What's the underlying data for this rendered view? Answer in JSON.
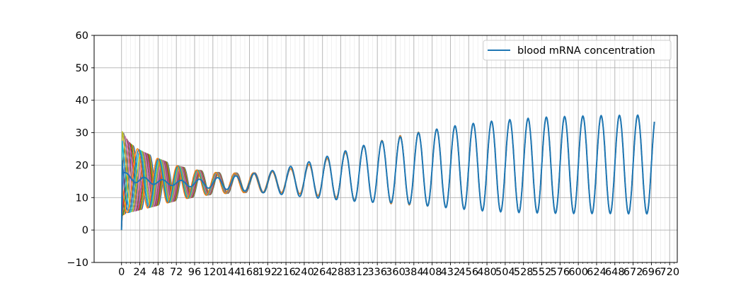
{
  "chart_data": {
    "type": "line",
    "title": "",
    "xlabel": "",
    "ylabel": "",
    "xlim": [
      -36,
      730
    ],
    "ylim": [
      -10,
      60
    ],
    "x_major_ticks": [
      0,
      24,
      48,
      72,
      96,
      120,
      144,
      168,
      192,
      216,
      240,
      264,
      288,
      312,
      336,
      360,
      384,
      408,
      432,
      456,
      480,
      504,
      528,
      552,
      576,
      600,
      624,
      648,
      672,
      696,
      720
    ],
    "x_tick_labels": [
      "0",
      "24",
      "48",
      "72",
      "96",
      "120",
      "144",
      "168",
      "192",
      "216",
      "240",
      "264",
      "288",
      "312",
      "336",
      "360",
      "384",
      "408",
      "432",
      "456",
      "480",
      "504",
      "528",
      "552",
      "576",
      "600",
      "624",
      "648",
      "672",
      "696",
      "720"
    ],
    "x_minor_tick_step": 6,
    "y_ticks": [
      -10,
      0,
      10,
      20,
      30,
      40,
      50,
      60
    ],
    "y_tick_labels": [
      "−10",
      "0",
      "10",
      "20",
      "30",
      "40",
      "50",
      "60"
    ],
    "grid": true,
    "legend_position": "top-right",
    "period_hours": 24,
    "highlight_series": {
      "name": "blood mRNA concentration",
      "color": "#1f77b4",
      "x": [
        0,
        1,
        2,
        3,
        6,
        10,
        20,
        30,
        40,
        50,
        60,
        80,
        100,
        120,
        150,
        180,
        200,
        240,
        280,
        320,
        360,
        400,
        440,
        480,
        520,
        560,
        600,
        640,
        680,
        700
      ],
      "center": [
        0,
        17.5,
        17.4,
        17.2,
        16.8,
        16.2,
        15.6,
        15.2,
        15.0,
        14.8,
        14.6,
        14.4,
        14.4,
        14.4,
        14.5,
        14.6,
        14.8,
        15.4,
        16.4,
        17.4,
        18.4,
        19.0,
        19.4,
        19.6,
        19.8,
        20.0,
        20.1,
        20.2,
        20.2,
        20.2
      ],
      "amplitude": [
        0,
        0.5,
        0.6,
        0.7,
        0.8,
        1.0,
        1.1,
        1.0,
        0.9,
        0.8,
        0.8,
        0.9,
        1.2,
        1.6,
        2.2,
        3.0,
        3.6,
        5.2,
        7.0,
        8.8,
        10.0,
        11.5,
        12.8,
        13.8,
        14.4,
        14.8,
        15.0,
        15.1,
        15.2,
        15.2
      ]
    },
    "background_series": {
      "count": 12,
      "colors": [
        "#1f77b4",
        "#ff7f0e",
        "#2ca02c",
        "#d62728",
        "#9467bd",
        "#8c564b",
        "#e377c2",
        "#7f7f7f",
        "#bcbd22",
        "#17becf"
      ],
      "x": [
        0,
        1,
        3,
        6,
        12,
        24,
        48,
        72,
        96,
        120,
        144,
        168,
        192,
        216,
        240,
        264,
        288,
        312,
        336,
        360,
        400,
        480,
        560,
        640,
        700
      ],
      "amplitude": [
        0,
        13,
        12.5,
        11.5,
        10.5,
        9.2,
        7.2,
        5.4,
        4.2,
        3.4,
        3.1,
        3.0,
        3.2,
        3.6,
        4.4,
        5.6,
        6.8,
        8.2,
        9.4,
        10.4,
        11.6,
        13.8,
        14.8,
        15.1,
        15.2
      ],
      "phase_spread": [
        3.14,
        3.14,
        3.0,
        2.8,
        2.6,
        2.2,
        1.7,
        1.25,
        0.9,
        0.62,
        0.42,
        0.28,
        0.18,
        0.1,
        0.06,
        0.03,
        0.01,
        0,
        0,
        0,
        0,
        0,
        0,
        0,
        0
      ]
    }
  }
}
